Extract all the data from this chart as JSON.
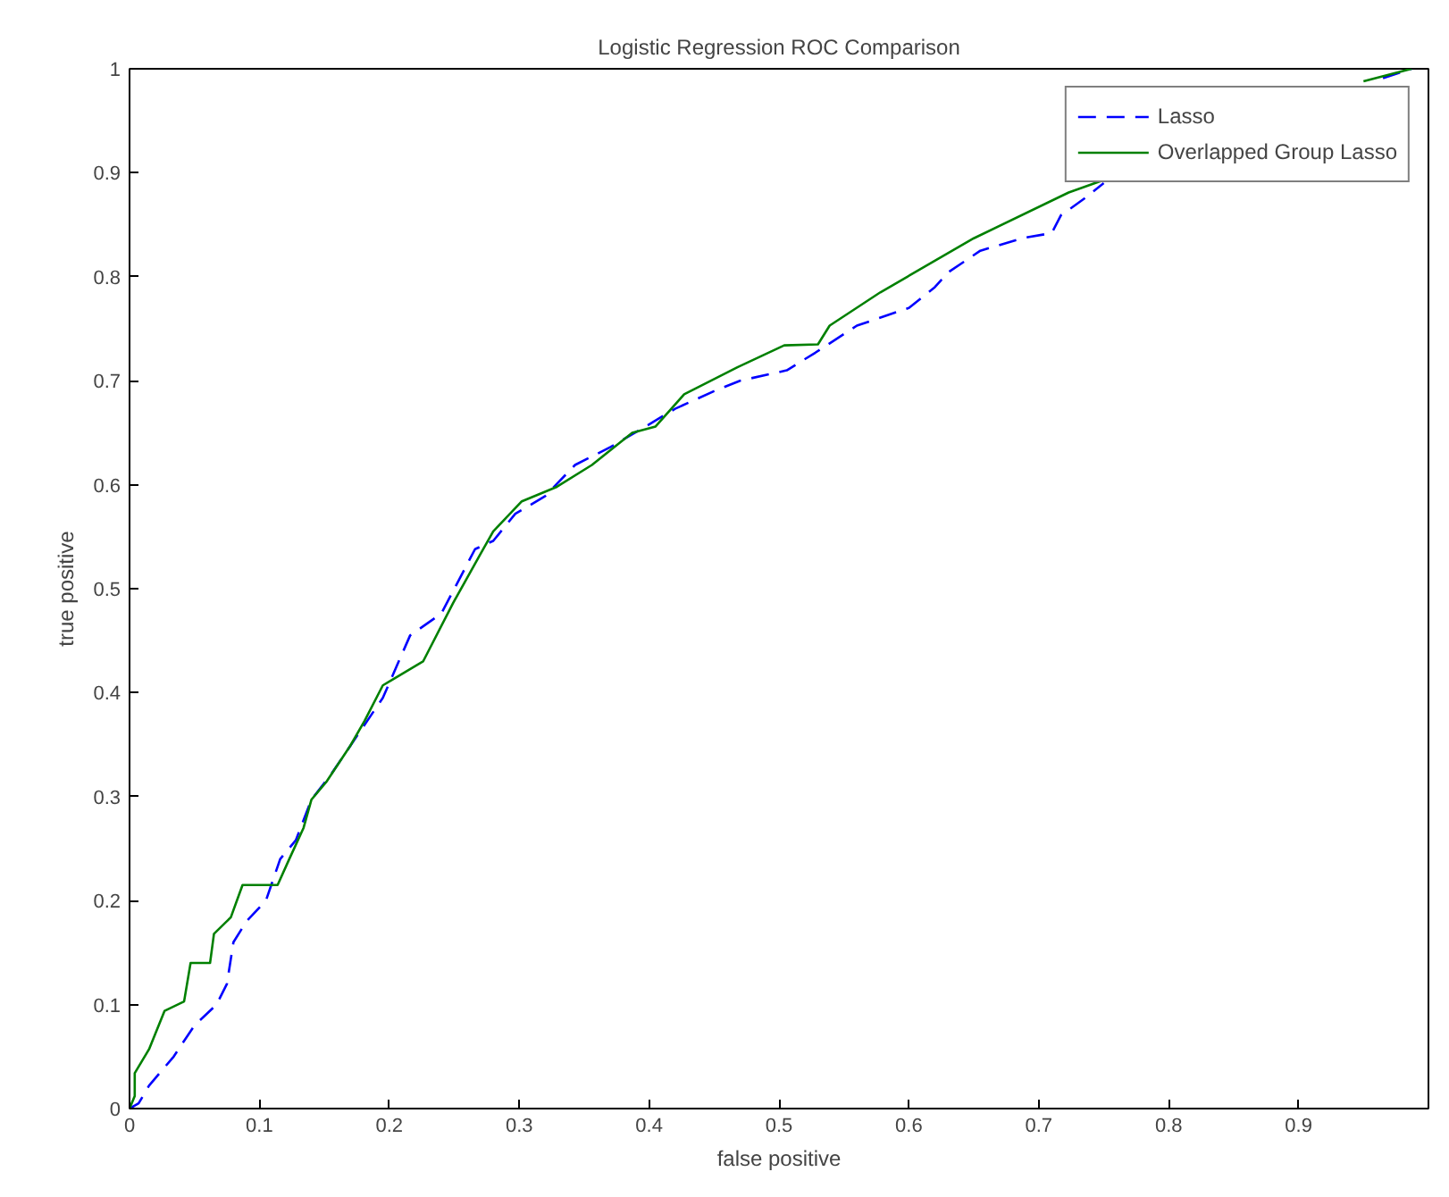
{
  "chart_data": {
    "type": "line",
    "title": "Logistic Regression ROC Comparison",
    "xlabel": "false positive",
    "ylabel": "true positive",
    "xlim": [
      0,
      1
    ],
    "ylim": [
      0,
      1
    ],
    "xticks": [
      0,
      0.1,
      0.2,
      0.3,
      0.4,
      0.5,
      0.6,
      0.7,
      0.8,
      0.9
    ],
    "yticks": [
      0,
      0.1,
      0.2,
      0.3,
      0.4,
      0.5,
      0.6,
      0.7,
      0.8,
      0.9,
      1
    ],
    "legend": "top right",
    "grid": false,
    "series": [
      {
        "name": "Lasso",
        "color": "#0000ff",
        "line_style": "dashed",
        "x": [
          0,
          0.007,
          0.015,
          0.034,
          0.05,
          0.067,
          0.075,
          0.08,
          0.09,
          0.105,
          0.116,
          0.128,
          0.14,
          0.156,
          0.176,
          0.195,
          0.216,
          0.24,
          0.266,
          0.28,
          0.297,
          0.32,
          0.343,
          0.37,
          0.4,
          0.42,
          0.45,
          0.47,
          0.506,
          0.528,
          0.56,
          0.6,
          0.62,
          0.63,
          0.655,
          0.687,
          0.71,
          0.717,
          0.736,
          0.75,
          0.85,
          0.965,
          0.987
        ],
        "values": [
          0,
          0.005,
          0.022,
          0.05,
          0.08,
          0.1,
          0.12,
          0.16,
          0.18,
          0.2,
          0.24,
          0.258,
          0.297,
          0.323,
          0.36,
          0.395,
          0.455,
          0.476,
          0.538,
          0.546,
          0.572,
          0.589,
          0.619,
          0.636,
          0.658,
          0.673,
          0.69,
          0.7,
          0.71,
          0.727,
          0.753,
          0.77,
          0.79,
          0.804,
          0.825,
          0.837,
          0.842,
          0.859,
          0.876,
          0.89,
          null,
          0.991,
          1
        ]
      },
      {
        "name": "Overlapped Group Lasso",
        "color": "#008000",
        "line_style": "solid",
        "x": [
          0,
          0.004,
          0.004,
          0.015,
          0.027,
          0.042,
          0.047,
          0.062,
          0.065,
          0.078,
          0.087,
          0.114,
          0.123,
          0.134,
          0.14,
          0.152,
          0.17,
          0.181,
          0.195,
          0.226,
          0.249,
          0.27,
          0.28,
          0.302,
          0.329,
          0.356,
          0.387,
          0.405,
          0.427,
          0.468,
          0.504,
          0.53,
          0.539,
          0.578,
          0.65,
          0.723,
          0.75,
          0.85,
          0.95,
          0.987
        ],
        "values": [
          0,
          0.012,
          0.034,
          0.057,
          0.094,
          0.103,
          0.14,
          0.14,
          0.168,
          0.184,
          0.215,
          0.215,
          0.24,
          0.27,
          0.297,
          0.315,
          0.349,
          0.373,
          0.407,
          0.43,
          0.486,
          0.533,
          0.555,
          0.584,
          0.598,
          0.619,
          0.65,
          0.656,
          0.687,
          0.713,
          0.734,
          0.735,
          0.753,
          0.785,
          0.837,
          0.881,
          0.893,
          null,
          0.988,
          1
        ]
      }
    ]
  }
}
